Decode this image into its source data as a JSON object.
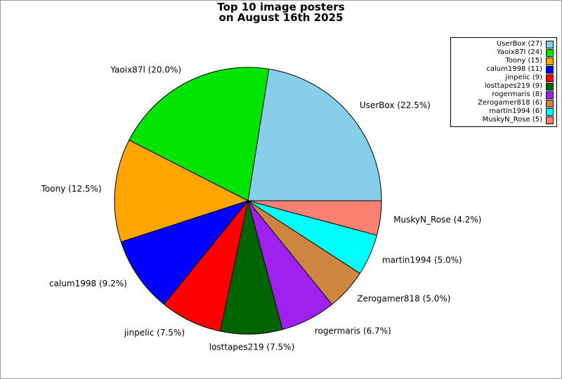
{
  "title": {
    "line1": "Top 10 image posters",
    "line2": "on August 16th 2025"
  },
  "chart_data": {
    "type": "pie",
    "title": "Top 10 image posters on August 16th 2025",
    "total": 120,
    "start_angle_deg": 0,
    "direction": "counterclockwise",
    "legend_position": "top-right",
    "slice_border_color": "#000000",
    "frame_border_color": "#999999",
    "background_color": "#ffffff",
    "slices": [
      {
        "name": "UserBox",
        "count": 27,
        "percent": 22.5,
        "color": "#87CEEB",
        "label": "UserBox (22.5%)",
        "legend_label": "UserBox (27)"
      },
      {
        "name": "Yaoix87l",
        "count": 24,
        "percent": 20.0,
        "color": "#00E400",
        "label": "Yaoix87l (20.0%)",
        "legend_label": "Yaoix87l (24)"
      },
      {
        "name": "Toony",
        "count": 15,
        "percent": 12.5,
        "color": "#FFA500",
        "label": "Toony (12.5%)",
        "legend_label": "Toony (15)"
      },
      {
        "name": "calum1998",
        "count": 11,
        "percent": 9.2,
        "color": "#0000FF",
        "label": "calum1998 (9.2%)",
        "legend_label": "calum1998 (11)"
      },
      {
        "name": "jinpelic",
        "count": 9,
        "percent": 7.5,
        "color": "#FF0000",
        "label": "jinpelic (7.5%)",
        "legend_label": "jinpelic (9)"
      },
      {
        "name": "losttapes219",
        "count": 9,
        "percent": 7.5,
        "color": "#006400",
        "label": "losttapes219 (7.5%)",
        "legend_label": "losttapes219 (9)"
      },
      {
        "name": "rogermaris",
        "count": 8,
        "percent": 6.7,
        "color": "#A020F0",
        "label": "rogermaris (6.7%)",
        "legend_label": "rogermaris (8)"
      },
      {
        "name": "Zerogamer818",
        "count": 6,
        "percent": 5.0,
        "color": "#CD853F",
        "label": "Zerogamer818 (5.0%)",
        "legend_label": "Zerogamer818 (6)"
      },
      {
        "name": "martin1994",
        "count": 6,
        "percent": 5.0,
        "color": "#00FFFF",
        "label": "martin1994 (5.0%)",
        "legend_label": "martin1994 (6)"
      },
      {
        "name": "MuskyN_Rose",
        "count": 5,
        "percent": 4.2,
        "color": "#FA8072",
        "label": "MuskyN_Rose (4.2%)",
        "legend_label": "MuskyN_Rose (5)"
      }
    ]
  }
}
